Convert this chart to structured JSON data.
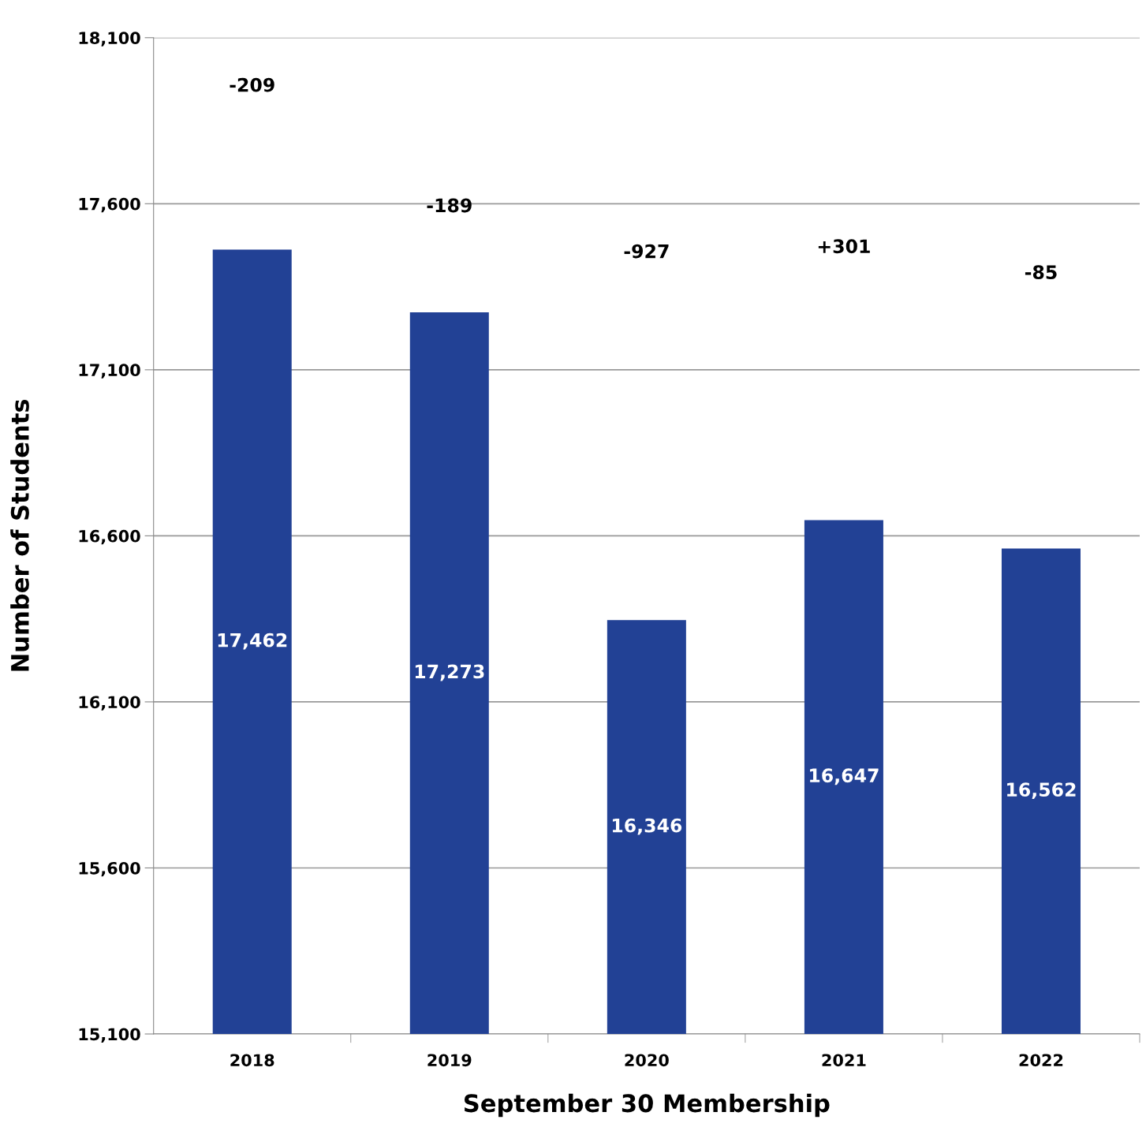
{
  "chart_data": {
    "type": "bar",
    "xlabel": "September 30 Membership",
    "ylabel": "Number of Students",
    "categories": [
      "2018",
      "2019",
      "2020",
      "2021",
      "2022"
    ],
    "values": [
      17462,
      17273,
      16346,
      16647,
      16562
    ],
    "color": "#224195",
    "ylim": [
      15100,
      18100
    ],
    "yticks": [
      {
        "value": 15100,
        "label": "15,100"
      },
      {
        "value": 15600,
        "label": "15,600"
      },
      {
        "value": 16100,
        "label": "16,100"
      },
      {
        "value": 16600,
        "label": "16,600"
      },
      {
        "value": 17100,
        "label": "17,100"
      },
      {
        "value": 17600,
        "label": "17,600"
      },
      {
        "value": 18100,
        "label": "18,100"
      }
    ],
    "grid": "y",
    "value_labels": [
      "17,462",
      "17,273",
      "16,346",
      "16,647",
      "16,562"
    ],
    "annotations": [
      "-209",
      "-189",
      "-927",
      "+301",
      "-85"
    ]
  }
}
